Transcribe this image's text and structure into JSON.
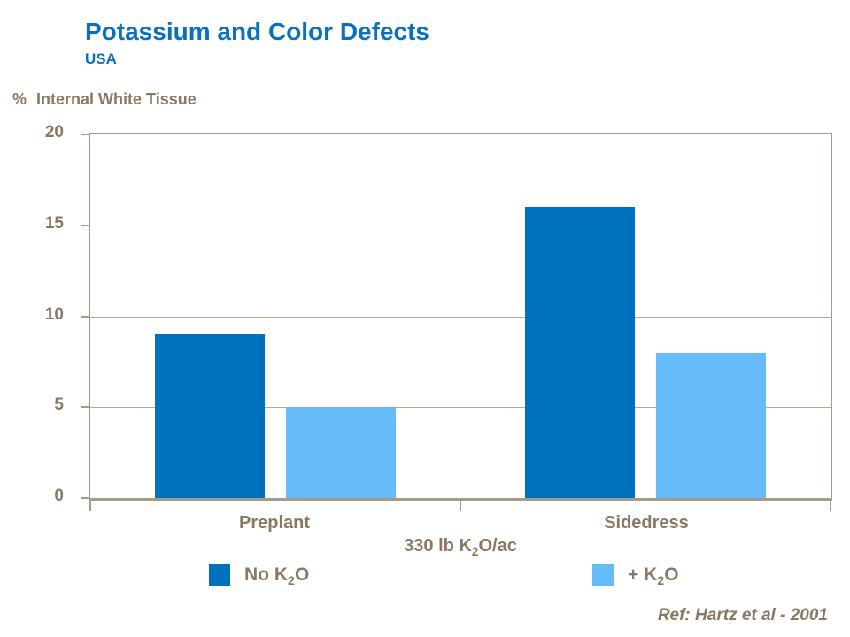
{
  "header": {
    "title": "Potassium and Color Defects",
    "subtitle": "USA"
  },
  "chart_data": {
    "type": "bar",
    "title": "Potassium and Color Defects",
    "subtitle": "USA",
    "y_axis_title": "% Internal White Tissue",
    "y_axis_title_prefix": "%",
    "y_axis_title_text": "Internal White Tissue",
    "categories": [
      "Preplant",
      "Sidedress"
    ],
    "series": [
      {
        "name": "No K₂O",
        "name_parts": {
          "pre": "No K",
          "sub": "2",
          "post": "O"
        },
        "color": "#0071BC",
        "values": [
          9,
          16
        ]
      },
      {
        "name": "+ K₂O",
        "name_parts": {
          "pre": "+ K",
          "sub": "2",
          "post": "O"
        },
        "color": "#66BBF9",
        "values": [
          5,
          8
        ]
      }
    ],
    "x_axis_label": "330 lb K₂O/ac",
    "x_axis_label_parts": {
      "pre": "330 lb K",
      "sub": "2",
      "post": "O/ac"
    },
    "ylim": [
      0,
      20
    ],
    "yticks": [
      0,
      5,
      10,
      15,
      20
    ],
    "grid": "horizontal",
    "legend_position": "bottom"
  },
  "footer": {
    "ref": "Ref: Hartz et al - 2001"
  },
  "colors": {
    "title_blue": "#0B71BD",
    "dark_bar": "#0071BC",
    "light_bar": "#66BBF9",
    "text_brown": "#8A7962",
    "axis_line": "#A69A8A",
    "gridline": "#B4A898"
  }
}
